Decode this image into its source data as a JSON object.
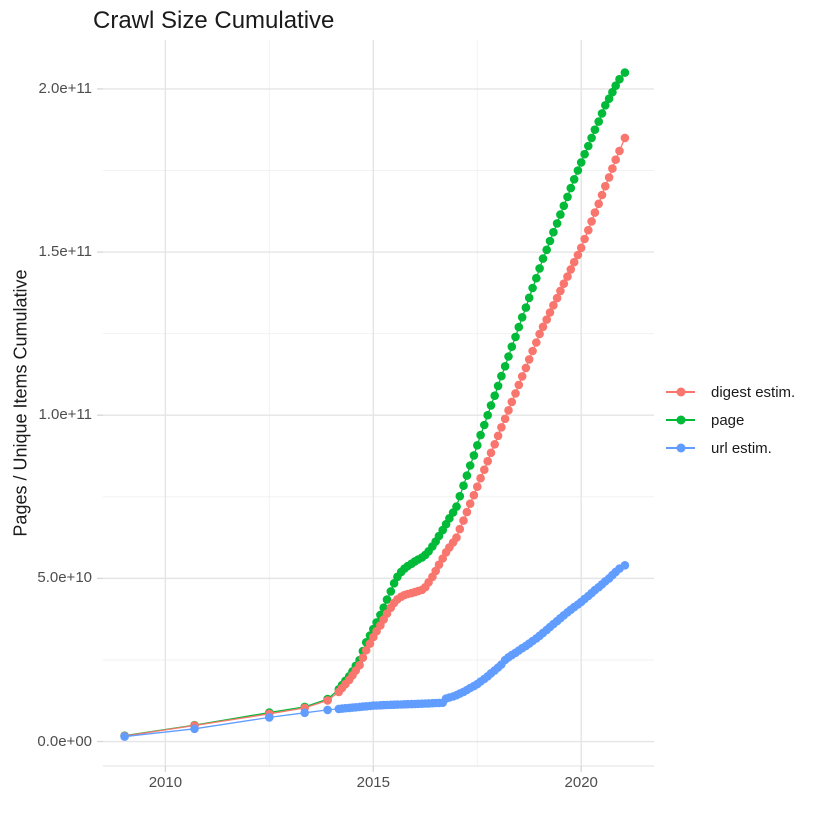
{
  "title": "Crawl Size Cumulative",
  "chart_data": {
    "type": "scatter",
    "title": "Crawl Size Cumulative",
    "xlabel": "",
    "ylabel": "Pages / Unique Items Cumulative",
    "values_unit": "billions (1e9)",
    "grid": "on",
    "legend_position": "right",
    "x_axis": {
      "domain": [
        2008.5,
        2021.75
      ],
      "major_ticks": [
        {
          "value": 2010,
          "label": "2010"
        },
        {
          "value": 2015,
          "label": "2015"
        },
        {
          "value": 2020,
          "label": "2020"
        }
      ],
      "minor_gridlines": [
        2012.5,
        2017.5
      ]
    },
    "y_axis": {
      "domain_e9": [
        -7.5,
        215
      ],
      "major_ticks": [
        {
          "value_e9": 0,
          "label": "0.0e+00"
        },
        {
          "value_e9": 50,
          "label": "5.0e+10"
        },
        {
          "value_e9": 100,
          "label": "1.0e+11"
        },
        {
          "value_e9": 150,
          "label": "1.5e+11"
        },
        {
          "value_e9": 200,
          "label": "2.0e+11"
        }
      ],
      "minor_gridlines_e9": [
        25,
        75,
        125,
        175
      ]
    },
    "x_years": [
      2009.02,
      2010.7,
      2012.5,
      2013.35,
      2013.9,
      2014.17,
      2014.25,
      2014.33,
      2014.42,
      2014.5,
      2014.58,
      2014.67,
      2014.75,
      2014.83,
      2014.92,
      2015.0,
      2015.08,
      2015.17,
      2015.25,
      2015.33,
      2015.42,
      2015.5,
      2015.58,
      2015.67,
      2015.75,
      2015.83,
      2015.92,
      2016.0,
      2016.08,
      2016.17,
      2016.25,
      2016.33,
      2016.42,
      2016.5,
      2016.58,
      2016.67,
      2016.75,
      2016.83,
      2016.92,
      2017.0,
      2017.08,
      2017.17,
      2017.25,
      2017.33,
      2017.42,
      2017.5,
      2017.58,
      2017.67,
      2017.75,
      2017.83,
      2017.92,
      2018.0,
      2018.08,
      2018.17,
      2018.25,
      2018.33,
      2018.42,
      2018.5,
      2018.58,
      2018.67,
      2018.75,
      2018.83,
      2018.92,
      2019.0,
      2019.08,
      2019.17,
      2019.25,
      2019.33,
      2019.42,
      2019.5,
      2019.58,
      2019.67,
      2019.75,
      2019.83,
      2019.92,
      2020.0,
      2020.08,
      2020.17,
      2020.25,
      2020.33,
      2020.42,
      2020.5,
      2020.58,
      2020.67,
      2020.75,
      2020.83,
      2020.92,
      2021.05
    ],
    "series": [
      {
        "name": "digest estim.",
        "color": "#F8766D",
        "draw_order": 2,
        "y_e9": [
          1.7,
          4.9,
          8.5,
          10.3,
          12.6,
          15.2,
          16.4,
          17.6,
          18.9,
          20.3,
          21.8,
          23.4,
          25.7,
          28.0,
          30.0,
          32.0,
          33.8,
          35.6,
          37.4,
          39.2,
          41.0,
          42.5,
          43.6,
          44.4,
          44.9,
          45.2,
          45.5,
          45.8,
          46.1,
          46.5,
          47.3,
          48.8,
          50.5,
          52.3,
          54.2,
          56.1,
          58.0,
          59.5,
          61.0,
          62.5,
          65.1,
          67.7,
          70.3,
          72.9,
          75.5,
          78.1,
          80.7,
          83.3,
          85.9,
          88.5,
          91.1,
          93.7,
          96.3,
          98.9,
          101.5,
          104.1,
          106.7,
          109.3,
          111.9,
          114.5,
          117.1,
          119.7,
          122.3,
          124.9,
          127.1,
          129.3,
          131.5,
          133.7,
          135.9,
          138.1,
          140.3,
          142.5,
          144.7,
          146.9,
          149.1,
          151.3,
          154.0,
          156.7,
          159.4,
          162.1,
          164.8,
          167.5,
          170.2,
          172.9,
          175.6,
          178.3,
          181.0,
          185.0
        ]
      },
      {
        "name": "page",
        "color": "#00BA38",
        "draw_order": 1,
        "y_e9": [
          1.8,
          5.0,
          8.9,
          10.6,
          13.0,
          16.0,
          17.3,
          18.6,
          20.0,
          21.5,
          23.2,
          25.0,
          27.7,
          30.4,
          32.5,
          34.5,
          36.5,
          38.8,
          41.0,
          43.5,
          46.0,
          48.5,
          50.5,
          52.0,
          53.0,
          53.8,
          54.5,
          55.2,
          55.8,
          56.4,
          57.2,
          58.3,
          59.8,
          61.3,
          63.0,
          64.8,
          66.6,
          68.4,
          70.2,
          72.0,
          75.2,
          78.4,
          81.5,
          84.6,
          87.7,
          90.8,
          93.9,
          97.0,
          100.0,
          103.0,
          106.0,
          109.0,
          112.0,
          115.0,
          118.0,
          121.0,
          124.0,
          127.0,
          130.0,
          133.0,
          136.0,
          139.0,
          142.0,
          145.0,
          148.0,
          150.7,
          153.4,
          156.1,
          158.8,
          161.5,
          164.2,
          166.9,
          169.6,
          172.3,
          175.0,
          177.5,
          180.0,
          182.5,
          185.0,
          187.5,
          190.0,
          192.5,
          195.0,
          197.0,
          199.0,
          201.0,
          203.0,
          205.0
        ]
      },
      {
        "name": "url estim.",
        "color": "#619CFF",
        "draw_order": 3,
        "y_e9": [
          1.5,
          3.9,
          7.4,
          8.8,
          9.7,
          10.0,
          10.1,
          10.2,
          10.3,
          10.4,
          10.5,
          10.6,
          10.7,
          10.8,
          10.9,
          11.0,
          11.05,
          11.1,
          11.15,
          11.2,
          11.25,
          11.3,
          11.33,
          11.36,
          11.4,
          11.43,
          11.46,
          11.5,
          11.55,
          11.6,
          11.65,
          11.7,
          11.75,
          11.8,
          11.85,
          11.9,
          13.2,
          13.5,
          13.8,
          14.2,
          14.7,
          15.2,
          15.8,
          16.4,
          17.0,
          17.6,
          18.4,
          19.2,
          20.0,
          20.9,
          21.8,
          22.7,
          23.6,
          25.0,
          25.8,
          26.5,
          27.2,
          27.9,
          28.6,
          29.3,
          30.0,
          30.8,
          31.6,
          32.4,
          33.3,
          34.2,
          35.1,
          36.0,
          36.9,
          37.8,
          38.7,
          39.6,
          40.4,
          41.2,
          42.0,
          42.8,
          43.7,
          44.6,
          45.5,
          46.4,
          47.3,
          48.2,
          49.1,
          50.0,
          51.0,
          52.0,
          53.0,
          54.0
        ]
      }
    ]
  },
  "style": {
    "major_grid_color": "#E5E5E5",
    "minor_grid_color": "#F2F2F2",
    "axis_line_color": "#E0E0E0",
    "tick_mark_color": "#D9D9D9",
    "tick_text_color": "#4d4d4d",
    "text_color": "#1a1a1a",
    "background": "#ffffff"
  }
}
